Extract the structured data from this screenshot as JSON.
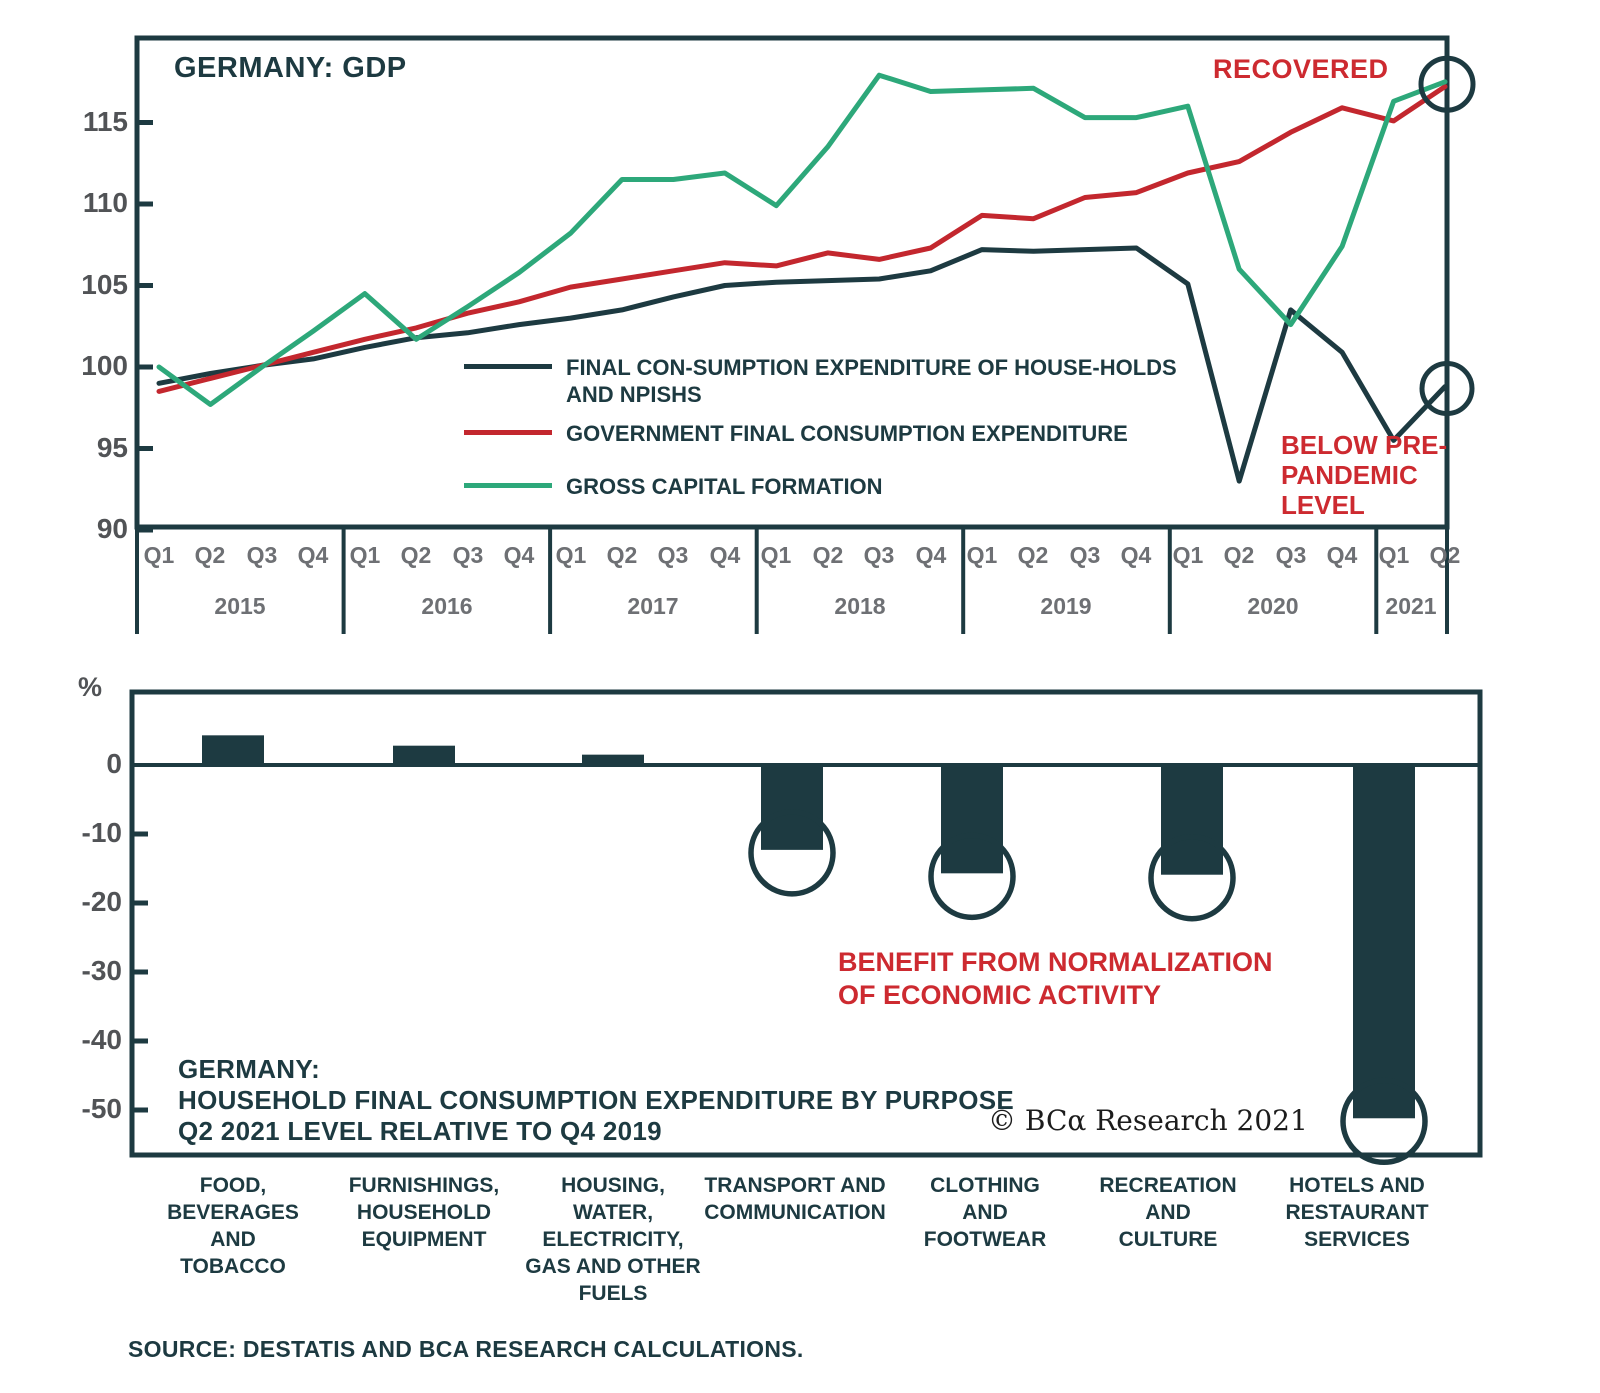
{
  "colors": {
    "dark": "#1d3a41",
    "red": "#c3272e",
    "red_text": "#cd2a30",
    "green": "#2da87a",
    "axis_num": "#515356",
    "quarter_gray": "#6e7074"
  },
  "chart_data": [
    {
      "type": "line",
      "title": "GERMANY: GDP",
      "ylim": [
        90,
        118.5
      ],
      "y_ticks": [
        115,
        110,
        105,
        100,
        95,
        90
      ],
      "years": [
        {
          "year": "2015",
          "quarters": [
            "Q1",
            "Q2",
            "Q3",
            "Q4"
          ]
        },
        {
          "year": "2016",
          "quarters": [
            "Q1",
            "Q2",
            "Q3",
            "Q4"
          ]
        },
        {
          "year": "2017",
          "quarters": [
            "Q1",
            "Q2",
            "Q3",
            "Q4"
          ]
        },
        {
          "year": "2018",
          "quarters": [
            "Q1",
            "Q2",
            "Q3",
            "Q4"
          ]
        },
        {
          "year": "2019",
          "quarters": [
            "Q1",
            "Q2",
            "Q3",
            "Q4"
          ]
        },
        {
          "year": "2020",
          "quarters": [
            "Q1",
            "Q2",
            "Q3",
            "Q4"
          ]
        },
        {
          "year": "2021",
          "quarters": [
            "Q1",
            "Q2"
          ]
        }
      ],
      "series": [
        {
          "name": "FINAL CON-SUMPTION EXPENDITURE OF HOUSE-HOLDS AND NPISHS",
          "legend_lines": [
            "FINAL CON-SUMPTION EXPENDITURE OF HOUSE-HOLDS",
            "AND NPISHS"
          ],
          "color_key": "dark",
          "values": [
            99.0,
            99.6,
            100.1,
            100.5,
            101.2,
            101.8,
            102.1,
            102.6,
            103.0,
            103.5,
            104.3,
            105.0,
            105.2,
            105.3,
            105.4,
            105.9,
            107.2,
            107.1,
            107.2,
            107.3,
            105.1,
            93.0,
            103.5,
            100.9,
            95.5,
            98.8
          ]
        },
        {
          "name": "GOVERNMENT FINAL CONSUMPTION EXPENDITURE",
          "legend_lines": [
            "GOVERNMENT FINAL CONSUMPTION EXPENDITURE"
          ],
          "color_key": "red",
          "values": [
            98.5,
            99.3,
            100.1,
            100.9,
            101.7,
            102.4,
            103.3,
            104.0,
            104.9,
            105.4,
            105.9,
            106.4,
            106.2,
            107.0,
            106.6,
            107.3,
            109.3,
            109.1,
            110.4,
            110.7,
            111.9,
            112.6,
            114.4,
            115.9,
            115.1,
            117.2
          ]
        },
        {
          "name": "GROSS CAPITAL FORMATION",
          "legend_lines": [
            "GROSS CAPITAL FORMATION"
          ],
          "color_key": "green",
          "values": [
            100.0,
            97.7,
            100.0,
            102.2,
            104.5,
            101.7,
            103.7,
            105.8,
            108.2,
            111.5,
            111.5,
            111.9,
            109.9,
            113.5,
            117.9,
            116.9,
            117.0,
            117.1,
            115.3,
            115.3,
            116.0,
            106.0,
            102.6,
            107.4,
            116.3,
            117.5
          ]
        }
      ],
      "annotations": {
        "recovered": "RECOVERED",
        "below_pre_pandemic_lines": [
          "BELOW PRE-",
          "PANDEMIC",
          "LEVEL"
        ]
      }
    },
    {
      "type": "bar",
      "title_lines": [
        "GERMANY:",
        "HOUSEHOLD FINAL CONSUMPTION EXPENDITURE BY PURPOSE",
        "Q2 2021 LEVEL RELATIVE TO Q4 2019"
      ],
      "ylabel": "%",
      "y_ticks": [
        0,
        -10,
        -20,
        -30,
        -40,
        -50
      ],
      "ylim": [
        -56,
        8
      ],
      "categories": [
        {
          "name": "FOOD, BEVERAGES AND TOBACCO",
          "label_lines": [
            "FOOD,",
            "BEVERAGES",
            "AND",
            "TOBACCO"
          ],
          "value": 4.3,
          "circled": false
        },
        {
          "name": "FURNISHINGS, HOUSEHOLD EQUIPMENT",
          "label_lines": [
            "FURNISHINGS,",
            "HOUSEHOLD",
            "EQUIPMENT"
          ],
          "value": 2.8,
          "circled": false
        },
        {
          "name": "HOUSING, WATER, ELECTRICITY, GAS AND OTHER FUELS",
          "label_lines": [
            "HOUSING,",
            "WATER,",
            "ELECTRICITY,",
            "GAS AND OTHER",
            "FUELS"
          ],
          "value": 1.5,
          "circled": false
        },
        {
          "name": "TRANSPORT AND COMMUNICATION",
          "label_lines": [
            "TRANSPORT AND",
            "COMMUNICATION"
          ],
          "value": -12.3,
          "circled": true
        },
        {
          "name": "CLOTHING AND FOOTWEAR",
          "label_lines": [
            "CLOTHING",
            "AND",
            "FOOTWEAR"
          ],
          "value": -15.7,
          "circled": true
        },
        {
          "name": "RECREATION AND CULTURE",
          "label_lines": [
            "RECREATION",
            "AND",
            "CULTURE"
          ],
          "value": -15.9,
          "circled": true
        },
        {
          "name": "HOTELS AND RESTAURANT SERVICES",
          "label_lines": [
            "HOTELS AND",
            "RESTAURANT",
            "SERVICES"
          ],
          "value": -51.2,
          "circled": true
        }
      ],
      "annotation_lines": [
        "BENEFIT FROM NORMALIZATION",
        "OF ECONOMIC ACTIVITY"
      ],
      "copyright": "© BCα Research 2021"
    }
  ],
  "source": "SOURCE: DESTATIS AND BCA RESEARCH CALCULATIONS."
}
